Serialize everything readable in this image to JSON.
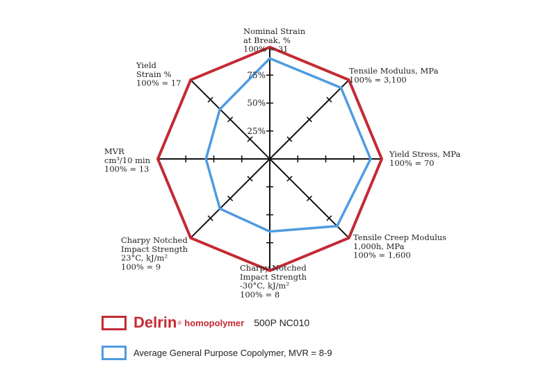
{
  "chart_data": {
    "type": "radar",
    "axes": [
      {
        "label_lines": [
          "Nominal Strain",
          "at Break, %",
          "100% = 31"
        ]
      },
      {
        "label_lines": [
          "Tensile Modulus, MPa",
          "100% = 3,100"
        ]
      },
      {
        "label_lines": [
          "Yield Stress, MPa",
          "100% = 70"
        ]
      },
      {
        "label_lines": [
          "Tensile Creep Modulus",
          "1,000h, MPa",
          "100% = 1,600"
        ]
      },
      {
        "label_lines": [
          "Charpy Notched",
          "Impact Strength",
          "-30°C, kJ/m²",
          "100% = 8"
        ]
      },
      {
        "label_lines": [
          "Charpy Notched",
          "Impact Strength",
          "23°C, kJ/m²",
          "100% = 9"
        ]
      },
      {
        "label_lines": [
          "MVR",
          "cm³/10 min",
          "100% = 13"
        ]
      },
      {
        "label_lines": [
          "Yield",
          "Strain %",
          "100% = 17"
        ]
      }
    ],
    "tick_labels": [
      "25%",
      "50%",
      "75%"
    ],
    "tick_values": [
      0.25,
      0.5,
      0.75
    ],
    "range": [
      0,
      1
    ],
    "series": [
      {
        "name_brand": "Delrin",
        "name_reg": "®",
        "name_sub": "homopolymer",
        "name_grade": "500P NC010",
        "color": "#c42a34",
        "values": [
          1.0,
          1.0,
          1.0,
          1.0,
          1.0,
          1.0,
          1.0,
          1.0
        ]
      },
      {
        "name": "Average General Purpose Copolymer, MVR = 8-9",
        "color": "#4f9be0",
        "values": [
          0.9,
          0.9,
          0.9,
          0.85,
          0.65,
          0.63,
          0.57,
          0.63
        ]
      }
    ]
  }
}
